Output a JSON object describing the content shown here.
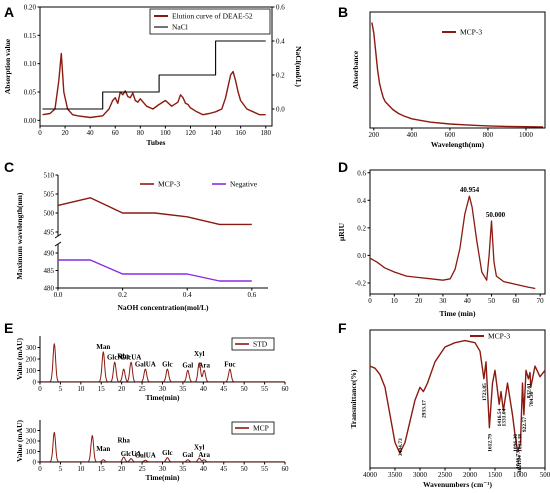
{
  "chart_data": [
    {
      "panel": "A",
      "type": "line",
      "xlabel": "Tubes",
      "ylabel": "Absorption value",
      "y2label": "NaCl(mol/L)",
      "xlim": [
        0,
        185
      ],
      "ylim": [
        -0.01,
        0.2
      ],
      "y2lim": [
        -0.1,
        0.6
      ],
      "xticks": [
        "0",
        "20",
        "40",
        "60",
        "80",
        "100",
        "120",
        "140",
        "160",
        "180"
      ],
      "yticks": [
        "0.00",
        "0.05",
        "0.10",
        "0.15",
        "0.20"
      ],
      "y2ticks": [
        "0.0",
        "0.2",
        "0.4",
        "0.6"
      ],
      "legend": [
        "Elution curve of DEAE-52",
        "NaCl"
      ],
      "legend_position": "top-right",
      "series": [
        {
          "name": "Elution curve of DEAE-52",
          "color": "#8b1a10",
          "x": [
            2,
            8,
            12,
            15,
            17,
            19,
            22,
            26,
            30,
            40,
            50,
            55,
            58,
            60,
            62,
            64,
            66,
            68,
            70,
            72,
            74,
            76,
            78,
            80,
            85,
            90,
            95,
            100,
            105,
            110,
            112,
            114,
            116,
            118,
            120,
            125,
            130,
            135,
            140,
            145,
            148,
            150,
            152,
            154,
            156,
            158,
            160,
            165,
            170,
            175,
            180
          ],
          "y": [
            0.01,
            0.012,
            0.02,
            0.07,
            0.118,
            0.05,
            0.02,
            0.01,
            0.008,
            0.005,
            0.008,
            0.02,
            0.035,
            0.04,
            0.03,
            0.05,
            0.045,
            0.052,
            0.042,
            0.04,
            0.048,
            0.035,
            0.032,
            0.038,
            0.025,
            0.02,
            0.028,
            0.035,
            0.025,
            0.032,
            0.045,
            0.04,
            0.03,
            0.028,
            0.022,
            0.015,
            0.01,
            0.012,
            0.015,
            0.02,
            0.04,
            0.06,
            0.08,
            0.086,
            0.07,
            0.05,
            0.035,
            0.02,
            0.015,
            0.01,
            0.01
          ]
        },
        {
          "name": "NaCl",
          "color": "#000000",
          "x": [
            2,
            50,
            50,
            95,
            95,
            140,
            140,
            180
          ],
          "y": [
            0.0,
            0.0,
            0.1,
            0.1,
            0.2,
            0.2,
            0.4,
            0.4
          ],
          "axis": "y2"
        }
      ]
    },
    {
      "panel": "B",
      "type": "line",
      "xlabel": "Wavelength(nm)",
      "ylabel": "Absorbance",
      "xlim": [
        180,
        1100
      ],
      "ylim": [
        0,
        4.4
      ],
      "xticks": [
        "200",
        "400",
        "600",
        "800",
        "1000"
      ],
      "legend": [
        "MCP-3"
      ],
      "legend_position": "top-right",
      "series": [
        {
          "name": "MCP-3",
          "color": "#8b1a10",
          "x": [
            190,
            200,
            210,
            220,
            230,
            240,
            250,
            260,
            280,
            300,
            330,
            360,
            400,
            450,
            500,
            600,
            700,
            800,
            900,
            1000,
            1090
          ],
          "y": [
            4.0,
            3.6,
            2.9,
            2.2,
            1.7,
            1.4,
            1.15,
            1.0,
            0.85,
            0.7,
            0.55,
            0.45,
            0.35,
            0.28,
            0.22,
            0.15,
            0.11,
            0.08,
            0.06,
            0.05,
            0.04
          ]
        }
      ]
    },
    {
      "panel": "C",
      "type": "line",
      "xlabel": "NaOH concentration(mol/L)",
      "ylabel": "Maximum wavelength(nm)",
      "xlim": [
        0,
        0.65
      ],
      "xticks": [
        "0.0",
        "0.2",
        "0.4",
        "0.6"
      ],
      "yticks": [
        "480",
        "485",
        "490",
        "495",
        "500",
        "505",
        "510"
      ],
      "legend": [
        "MCP-3",
        "Negative"
      ],
      "legend_position": "top-right",
      "series": [
        {
          "name": "MCP-3",
          "color": "#8b1a10",
          "x": [
            0.0,
            0.1,
            0.2,
            0.3,
            0.4,
            0.5,
            0.6
          ],
          "y": [
            502,
            504,
            500,
            500,
            499,
            497,
            497
          ]
        },
        {
          "name": "Negative",
          "color": "#8a2be2",
          "x": [
            0.0,
            0.1,
            0.2,
            0.3,
            0.4,
            0.5,
            0.6
          ],
          "y": [
            488,
            488,
            484,
            484,
            484,
            482,
            482
          ]
        }
      ]
    },
    {
      "panel": "D",
      "type": "line",
      "xlabel": "Time (min)",
      "ylabel": "μRIU",
      "xlim": [
        0,
        72
      ],
      "ylim": [
        -0.28,
        0.62
      ],
      "xticks": [
        "0",
        "10",
        "20",
        "30",
        "40",
        "50",
        "60",
        "70"
      ],
      "yticks": [
        "-0.2",
        "0.0",
        "0.2",
        "0.4",
        "0.6"
      ],
      "annotations": [
        "40.954",
        "50.000"
      ],
      "series": [
        {
          "name": "",
          "color": "#8b1a10",
          "x": [
            0,
            3,
            6,
            10,
            15,
            20,
            25,
            30,
            33,
            35,
            37,
            39,
            40.9,
            42,
            44,
            46,
            48,
            49,
            50,
            51,
            52,
            55,
            60,
            65,
            68
          ],
          "y": [
            -0.02,
            -0.05,
            -0.09,
            -0.12,
            -0.15,
            -0.16,
            -0.17,
            -0.18,
            -0.17,
            -0.1,
            0.05,
            0.3,
            0.43,
            0.35,
            0.1,
            -0.12,
            -0.18,
            0.0,
            0.25,
            -0.05,
            -0.15,
            -0.19,
            -0.21,
            -0.23,
            -0.24
          ]
        }
      ],
      "peaks": [
        {
          "x": 40.954,
          "y": 0.43,
          "label": "40.954"
        },
        {
          "x": 50.0,
          "y": 0.25,
          "label": "50.000"
        }
      ]
    },
    {
      "panel": "E-STD",
      "type": "line",
      "xlabel": "Time(min)",
      "ylabel": "Value (mAU)",
      "xlim": [
        0,
        60
      ],
      "ylim": [
        0,
        400
      ],
      "xticks": [
        "0",
        "5",
        "10",
        "15",
        "20",
        "25",
        "30",
        "35",
        "40",
        "45",
        "50",
        "55",
        "60"
      ],
      "yticks": [
        "0",
        "100",
        "200",
        "300"
      ],
      "legend": [
        "STD"
      ],
      "legend_position": "top-right",
      "annotations": [
        "Man",
        "GlcN",
        "Rha",
        "GlcUA",
        "GalUA",
        "Glc",
        "Gal",
        "Xyl",
        "Ara",
        "Fuc"
      ],
      "peaks": [
        {
          "x": 3.5,
          "y": 330,
          "label": ""
        },
        {
          "x": 15.5,
          "y": 260,
          "label": "Man"
        },
        {
          "x": 18.3,
          "y": 170,
          "label": "GlcN"
        },
        {
          "x": 20.5,
          "y": 110,
          "label": "Rha"
        },
        {
          "x": 22.3,
          "y": 170,
          "label": "GlcUA"
        },
        {
          "x": 25.8,
          "y": 110,
          "label": "GalUA"
        },
        {
          "x": 31.2,
          "y": 110,
          "label": "Glc"
        },
        {
          "x": 36.2,
          "y": 100,
          "label": "Gal"
        },
        {
          "x": 39.0,
          "y": 165,
          "label": "Xyl"
        },
        {
          "x": 40.2,
          "y": 100,
          "label": "Ara"
        },
        {
          "x": 46.5,
          "y": 110,
          "label": "Fuc"
        }
      ]
    },
    {
      "panel": "E-MCP",
      "type": "line",
      "xlabel": "Time(min)",
      "ylabel": "Value (mAU)",
      "xlim": [
        0,
        60
      ],
      "ylim": [
        0,
        400
      ],
      "xticks": [
        "0",
        "5",
        "10",
        "15",
        "20",
        "25",
        "30",
        "35",
        "40",
        "45",
        "50",
        "55",
        "60"
      ],
      "yticks": [
        "0",
        "100",
        "200",
        "300"
      ],
      "legend": [
        "MCP"
      ],
      "legend_position": "top-right",
      "annotations": [
        "Man",
        "Rha",
        "GlcUA",
        "GalUA",
        "Glc",
        "Gal",
        "Xyl",
        "Ara"
      ],
      "peaks": [
        {
          "x": 3.5,
          "y": 280,
          "label": ""
        },
        {
          "x": 12.8,
          "y": 250,
          "label": ""
        },
        {
          "x": 15.5,
          "y": 20,
          "label": "Man"
        },
        {
          "x": 20.5,
          "y": 45,
          "label": "Rha"
        },
        {
          "x": 22.3,
          "y": 30,
          "label": "GlcUA"
        },
        {
          "x": 25.8,
          "y": 15,
          "label": "GalUA"
        },
        {
          "x": 31.2,
          "y": 40,
          "label": "Glc"
        },
        {
          "x": 36.2,
          "y": 20,
          "label": "Gal"
        },
        {
          "x": 39.0,
          "y": 35,
          "label": "Xyl"
        },
        {
          "x": 40.2,
          "y": 20,
          "label": "Ara"
        }
      ]
    },
    {
      "panel": "F",
      "type": "line",
      "xlabel": "Wavenumbers (cm⁻¹)",
      "ylabel": "Transmittance(%)",
      "xlim": [
        4000,
        500
      ],
      "ylim": [
        30,
        95
      ],
      "xticks": [
        "4000",
        "3500",
        "3000",
        "2500",
        "2000",
        "1500",
        "1000",
        "500"
      ],
      "legend": [
        "MCP-3"
      ],
      "legend_position": "top-right",
      "annotations": [
        "3404.73",
        "2933.17",
        "1723.85",
        "1612.79",
        "1416.54",
        "1331.04",
        "1096.30",
        "1013.38",
        "1046.73",
        "1021.04",
        "922.57",
        "784.36",
        "832.61"
      ],
      "series": [
        {
          "name": "MCP-3",
          "color": "#8b1a10",
          "x": [
            4000,
            3900,
            3800,
            3700,
            3600,
            3500,
            3404,
            3300,
            3200,
            3100,
            3000,
            2933,
            2850,
            2700,
            2500,
            2300,
            2100,
            1900,
            1800,
            1723,
            1680,
            1612,
            1550,
            1500,
            1416,
            1380,
            1331,
            1250,
            1150,
            1096,
            1046,
            1013,
            990,
            950,
            922,
            880,
            832,
            800,
            784,
            700,
            600,
            500
          ],
          "y": [
            78,
            77,
            74,
            68,
            55,
            42,
            37,
            42,
            52,
            62,
            68,
            66,
            70,
            80,
            87,
            89,
            90,
            89,
            85,
            72,
            80,
            49,
            70,
            76,
            60,
            66,
            57,
            70,
            55,
            45,
            38,
            40,
            42,
            70,
            55,
            76,
            72,
            75,
            68,
            78,
            73,
            76
          ]
        }
      ]
    }
  ]
}
